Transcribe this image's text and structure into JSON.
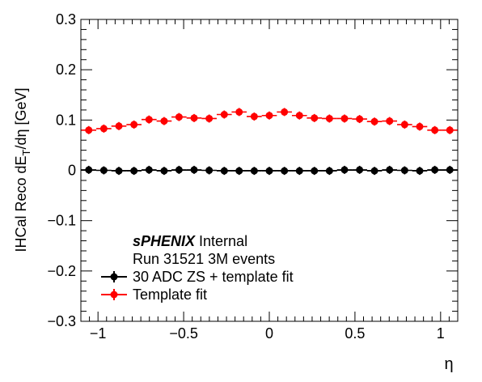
{
  "chart_data": {
    "type": "scatter",
    "xlabel": "η",
    "ylabel_main": "IHCal Reco dE",
    "ylabel_sub": "T",
    "ylabel_tail": "/dη [GeV]",
    "xlim": [
      -1.1,
      1.1
    ],
    "ylim": [
      -0.3,
      0.3
    ],
    "x_ticks": [
      -1,
      -0.5,
      0,
      0.5,
      1
    ],
    "x_tick_labels": [
      "−1",
      "−0.5",
      "0",
      "0.5",
      "1"
    ],
    "y_ticks": [
      -0.3,
      -0.2,
      -0.1,
      0,
      0.1,
      0.2,
      0.3
    ],
    "y_tick_labels": [
      "−0.3",
      "−0.2",
      "−0.1",
      "0",
      "0.1",
      "0.2",
      "0.3"
    ],
    "annotation_bold": "sPHENIX",
    "annotation_rest": " Internal",
    "annotation_line2": "Run 31521 3M events",
    "x": [
      -1.054,
      -0.966,
      -0.878,
      -0.79,
      -0.702,
      -0.614,
      -0.527,
      -0.439,
      -0.351,
      -0.263,
      -0.176,
      -0.088,
      0.0,
      0.088,
      0.176,
      0.263,
      0.351,
      0.439,
      0.527,
      0.614,
      0.702,
      0.79,
      0.878,
      0.966,
      1.054
    ],
    "series": [
      {
        "name": "30 ADC ZS + template fit",
        "color": "#000000",
        "values": [
          0.001,
          0.0,
          -0.001,
          -0.001,
          0.001,
          -0.001,
          0.001,
          0.001,
          0.0,
          -0.001,
          -0.001,
          -0.001,
          -0.001,
          -0.001,
          -0.001,
          -0.001,
          -0.001,
          0.001,
          0.001,
          -0.001,
          0.001,
          0.0,
          -0.001,
          0.001,
          0.001
        ]
      },
      {
        "name": "Template fit",
        "color": "#ff0000",
        "values": [
          0.08,
          0.083,
          0.088,
          0.091,
          0.101,
          0.098,
          0.106,
          0.104,
          0.103,
          0.111,
          0.116,
          0.107,
          0.109,
          0.116,
          0.109,
          0.104,
          0.103,
          0.103,
          0.102,
          0.097,
          0.098,
          0.091,
          0.087,
          0.08,
          0.08
        ]
      }
    ]
  }
}
